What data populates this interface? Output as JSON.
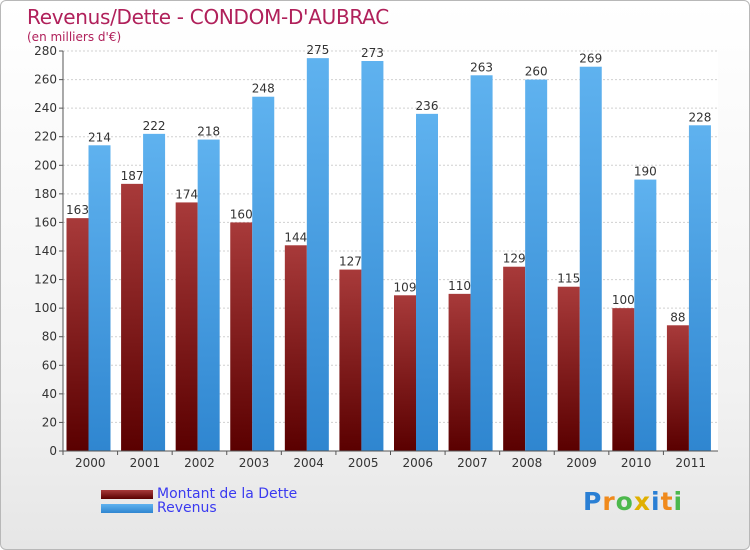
{
  "chart_data": {
    "type": "bar",
    "title": "Revenus/Dette - CONDOM-D'AUBRAC",
    "subtitle": "(en milliers d'€)",
    "categories": [
      "2000",
      "2001",
      "2002",
      "2003",
      "2004",
      "2005",
      "2006",
      "2007",
      "2008",
      "2009",
      "2010",
      "2011"
    ],
    "series": [
      {
        "name": "Montant de la Dette",
        "color": "#8a1c1c",
        "values": [
          163,
          187,
          174,
          160,
          144,
          127,
          109,
          110,
          129,
          115,
          100,
          88
        ]
      },
      {
        "name": "Revenus",
        "color": "#4aa3e8",
        "values": [
          214,
          222,
          218,
          248,
          275,
          273,
          236,
          263,
          260,
          269,
          190,
          228
        ]
      }
    ],
    "ylim": [
      0,
      280
    ],
    "yticks": [
      0,
      20,
      40,
      60,
      80,
      100,
      120,
      140,
      160,
      180,
      200,
      220,
      240,
      260,
      280
    ],
    "grid": true,
    "legend_position": "bottom-left"
  },
  "logo": {
    "letters": [
      "P",
      "r",
      "o",
      "x",
      "i",
      "t",
      "i"
    ],
    "colors": [
      "#2a7fd4",
      "#f08a1c",
      "#4cb84c",
      "#e0b000",
      "#2a7fd4",
      "#f08a1c",
      "#4cb84c"
    ]
  }
}
